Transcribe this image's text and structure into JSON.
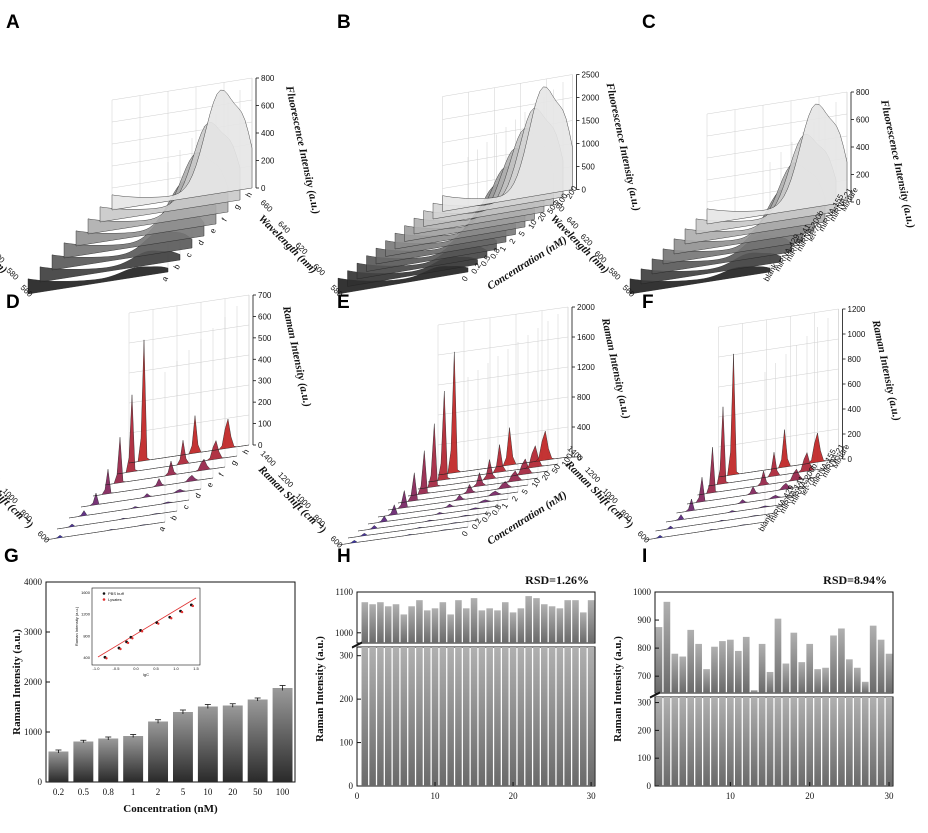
{
  "panels": {
    "A": {
      "label": "A",
      "type": "3d-waterfall",
      "z_axis": {
        "label": "Fluorescence Intensity (a.u.)",
        "ticks": [
          "0",
          "200",
          "400",
          "600",
          "800"
        ]
      },
      "x_axis": {
        "label": "Wavelength (nm)",
        "ticks": [
          "560",
          "580",
          "600",
          "620",
          "640",
          "660"
        ]
      },
      "series_labels": [
        "a",
        "b",
        "c",
        "d",
        "e",
        "f",
        "g",
        "h"
      ]
    },
    "B": {
      "label": "B",
      "type": "3d-waterfall",
      "z_axis": {
        "label": "Fluorescence Intensity (a.u.)",
        "ticks": [
          "0",
          "500",
          "1000",
          "1500",
          "2000",
          "2500"
        ]
      },
      "x_axis": {
        "label": "Wavelength (nm)",
        "ticks": [
          "580",
          "600",
          "620",
          "640",
          "660"
        ]
      },
      "y_axis": {
        "label": "Concentration (nM)",
        "ticks": [
          "0",
          "0.2",
          "0.5",
          "0.8",
          "1",
          "2",
          "5",
          "10",
          "20",
          "50",
          "100",
          "200"
        ]
      }
    },
    "C": {
      "label": "C",
      "type": "3d-waterfall",
      "z_axis": {
        "label": "Fluorescence Intensity (a.u.)",
        "ticks": [
          "0",
          "200",
          "400",
          "600",
          "800"
        ]
      },
      "x_axis": {
        "label": "Wavelength (nm)",
        "ticks": [
          "560",
          "580",
          "600",
          "620",
          "640",
          "660"
        ]
      },
      "series_labels": [
        "blank",
        "miRNA-429",
        "miRNA-141",
        "miRNA-200b",
        "let-7d",
        "miRNA-155",
        "miRNA-21",
        "Mixture"
      ]
    },
    "D": {
      "label": "D",
      "type": "3d-waterfall",
      "z_axis": {
        "label": "Raman Intensity (a.u.)",
        "ticks": [
          "0",
          "100",
          "200",
          "300",
          "400",
          "500",
          "600",
          "700"
        ]
      },
      "x_axis": {
        "label": "Raman Shift (cm⁻¹)",
        "ticks": [
          "600",
          "800",
          "1000",
          "1200",
          "1400"
        ]
      },
      "series_labels": [
        "a",
        "b",
        "c",
        "d",
        "e",
        "f",
        "g",
        "h"
      ]
    },
    "E": {
      "label": "E",
      "type": "3d-waterfall",
      "z_axis": {
        "label": "Raman Intensity (a.u.)",
        "ticks": [
          "0",
          "400",
          "800",
          "1200",
          "1600",
          "2000"
        ]
      },
      "x_axis": {
        "label": "Raman Shift (cm⁻¹)",
        "ticks": [
          "600",
          "800",
          "1000",
          "1200",
          "1400"
        ]
      },
      "y_axis": {
        "label": "Concentration (nM)",
        "ticks": [
          "0",
          "0.2",
          "0.5",
          "0.8",
          "1",
          "2",
          "5",
          "10",
          "20",
          "50",
          "100"
        ]
      }
    },
    "F": {
      "label": "F",
      "type": "3d-waterfall",
      "z_axis": {
        "label": "Raman Intensity (a.u.)",
        "ticks": [
          "0",
          "200",
          "400",
          "600",
          "800",
          "1000",
          "1200"
        ]
      },
      "x_axis": {
        "label": "Raman Shift (cm⁻¹)",
        "ticks": [
          "600",
          "800",
          "1000",
          "1200",
          "1400"
        ]
      },
      "series_labels": [
        "blank",
        "miRNA-429",
        "miRNA-141",
        "miRNA-200b",
        "let-7d",
        "miRNA-155",
        "miRNA-21",
        "Mixture"
      ]
    },
    "G": {
      "label": "G"
    },
    "H": {
      "label": "H"
    },
    "I": {
      "label": "I"
    }
  },
  "chart_data": [
    {
      "panel": "G",
      "type": "bar",
      "xlabel": "Concentration (nM)",
      "ylabel": "Raman Intensity (a.u.)",
      "categories": [
        "0.2",
        "0.5",
        "0.8",
        "1",
        "2",
        "5",
        "10",
        "20",
        "50",
        "100"
      ],
      "values": [
        610,
        810,
        870,
        920,
        1210,
        1400,
        1510,
        1530,
        1650,
        1880
      ],
      "errors": [
        30,
        25,
        30,
        30,
        35,
        40,
        40,
        35,
        30,
        50
      ],
      "ylim": [
        0,
        4000
      ],
      "yticks": [
        0,
        1000,
        2000,
        3000,
        4000
      ],
      "inset": {
        "type": "scatter",
        "xlabel": "lgC",
        "ylabel": "Raman Intensity (a.u.)",
        "legend": [
          "PBS buff",
          "Lysates"
        ],
        "xticks": [
          "-1.0",
          "-0.5",
          "0.0",
          "0.5",
          "1.0",
          "1.5"
        ],
        "yticks": [
          "400",
          "800",
          "1200",
          "1600"
        ],
        "fit_color": "#e03030"
      }
    },
    {
      "panel": "H",
      "type": "bar",
      "annotation": "RSD=1.26%",
      "xlabel": "",
      "ylabel": "Raman Intensity (a.u.)",
      "x": [
        1,
        2,
        3,
        4,
        5,
        6,
        7,
        8,
        9,
        10,
        11,
        12,
        13,
        14,
        15,
        16,
        17,
        18,
        19,
        20,
        21,
        22,
        23,
        24,
        25,
        26,
        27,
        28,
        29,
        30
      ],
      "values": [
        1075,
        1070,
        1075,
        1065,
        1070,
        1045,
        1065,
        1080,
        1055,
        1060,
        1075,
        1045,
        1080,
        1060,
        1085,
        1055,
        1060,
        1055,
        1075,
        1050,
        1060,
        1090,
        1085,
        1070,
        1065,
        1060,
        1080,
        1080,
        1050,
        1080
      ],
      "ylim_lower": [
        0,
        320
      ],
      "ylim_upper": [
        975,
        1100
      ],
      "yticks": [
        0,
        100,
        200,
        300,
        1000,
        1100
      ],
      "xticks": [
        0,
        10,
        20,
        30
      ]
    },
    {
      "panel": "I",
      "type": "bar",
      "annotation": "RSD=8.94%",
      "xlabel": "",
      "ylabel": "Raman Intensity (a.u.)",
      "x": [
        1,
        2,
        3,
        4,
        5,
        6,
        7,
        8,
        9,
        10,
        11,
        12,
        13,
        14,
        15,
        16,
        17,
        18,
        19,
        20,
        21,
        22,
        23,
        24,
        25,
        26,
        27,
        28,
        29,
        30
      ],
      "values": [
        875,
        965,
        780,
        770,
        865,
        815,
        725,
        805,
        825,
        830,
        790,
        840,
        650,
        815,
        715,
        905,
        745,
        855,
        750,
        815,
        725,
        730,
        845,
        870,
        760,
        730,
        680,
        880,
        830,
        780
      ],
      "ylim_lower": [
        0,
        320
      ],
      "ylim_upper": [
        640,
        1000
      ],
      "yticks": [
        0,
        100,
        200,
        300,
        700,
        800,
        900,
        1000
      ],
      "xticks": [
        10,
        20,
        30
      ]
    }
  ]
}
